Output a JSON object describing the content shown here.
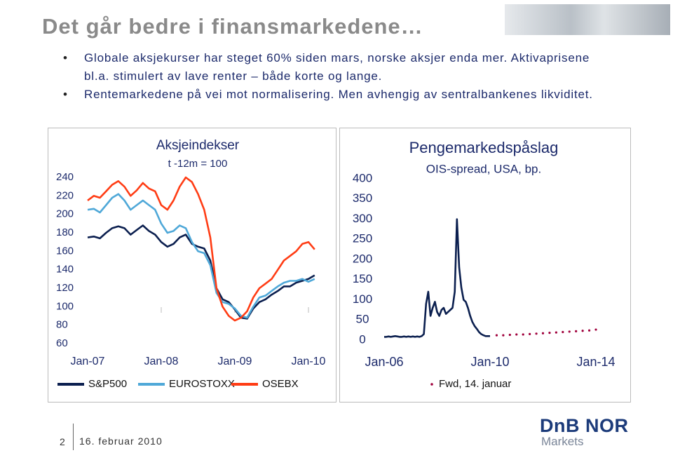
{
  "title": "Det går bedre i finansmarkedene…",
  "bullets": [
    "Globale aksjekurser har steget 60% siden mars, norske aksjer enda mer. Aktivaprisene bl.a. stimulert av lave renter – både korte og lange.",
    "Rentemarkedene på vei mot normalisering. Men avhengig av sentralbankenes likviditet."
  ],
  "footer": {
    "page": "2",
    "date": "16. februar 2010",
    "logo": "DnB NOR",
    "logo_sub": "Markets"
  },
  "chart_data": [
    {
      "type": "line",
      "title": "Aksjeindekser",
      "subtitle": "t -12m = 100",
      "categories": [
        "Jan-07",
        null,
        null,
        null,
        null,
        null,
        null,
        null,
        null,
        null,
        null,
        null,
        "Jan-08",
        null,
        null,
        null,
        null,
        null,
        null,
        null,
        null,
        null,
        null,
        null,
        "Jan-09",
        null,
        null,
        null,
        null,
        null,
        null,
        null,
        null,
        null,
        null,
        null,
        "Jan-10",
        null
      ],
      "series": [
        {
          "name": "S&P500",
          "color": "#0b1f4f",
          "values": [
            175,
            176,
            174,
            180,
            185,
            187,
            185,
            178,
            183,
            188,
            182,
            178,
            170,
            165,
            168,
            175,
            178,
            168,
            165,
            163,
            150,
            120,
            108,
            105,
            97,
            88,
            87,
            98,
            105,
            108,
            113,
            117,
            122,
            122,
            126,
            128,
            130,
            134
          ]
        },
        {
          "name": "EUROSTOXX",
          "color": "#4fa8d8",
          "values": [
            205,
            206,
            202,
            210,
            218,
            222,
            215,
            205,
            210,
            215,
            210,
            205,
            190,
            180,
            182,
            188,
            185,
            170,
            160,
            158,
            145,
            115,
            105,
            103,
            98,
            90,
            88,
            100,
            110,
            112,
            117,
            122,
            126,
            128,
            128,
            130,
            127,
            130
          ]
        },
        {
          "name": "OSEBX",
          "color": "#ff3c14",
          "values": [
            215,
            220,
            218,
            225,
            232,
            236,
            230,
            220,
            226,
            234,
            228,
            225,
            210,
            205,
            215,
            230,
            240,
            235,
            222,
            205,
            175,
            120,
            100,
            90,
            85,
            88,
            95,
            110,
            120,
            125,
            130,
            140,
            150,
            155,
            160,
            168,
            170,
            162
          ]
        }
      ],
      "ylim": [
        60,
        240
      ],
      "yticks": [
        60,
        80,
        100,
        120,
        140,
        160,
        180,
        200,
        220,
        240
      ]
    },
    {
      "type": "line",
      "title": "Pengemarkedspåslag",
      "subtitle": "OIS-spread, USA, bp.",
      "categories": [
        "Jan-06",
        null,
        null,
        null,
        null,
        null,
        null,
        null,
        null,
        null,
        null,
        null,
        null,
        null,
        null,
        null,
        null,
        null,
        null,
        null,
        null,
        null,
        null,
        null,
        null,
        null,
        null,
        null,
        null,
        null,
        null,
        null,
        null,
        null,
        null,
        null,
        null,
        null,
        null,
        null,
        null,
        null,
        null,
        null,
        null,
        null,
        null,
        null,
        "Jan-10",
        null,
        null,
        null,
        null,
        null,
        null,
        null,
        null,
        null,
        null,
        null,
        null,
        null,
        null,
        null,
        null,
        null,
        null,
        null,
        null,
        null,
        null,
        null,
        null,
        null,
        null,
        null,
        null,
        null,
        null,
        null,
        null,
        null,
        null,
        null,
        null,
        null,
        null,
        null,
        null,
        null,
        null,
        null,
        null,
        null,
        null,
        null,
        "Jan-14"
      ],
      "series": [
        {
          "color": "#0b1f4f",
          "values": [
            8,
            8,
            9,
            8,
            9,
            10,
            9,
            8,
            8,
            9,
            8,
            9,
            8,
            9,
            8,
            9,
            8,
            10,
            15,
            90,
            120,
            60,
            80,
            95,
            70,
            60,
            75,
            80,
            65,
            70,
            75,
            80,
            120,
            300,
            180,
            130,
            100,
            95,
            80,
            60,
            45,
            35,
            28,
            20,
            15,
            12,
            10,
            10,
            10,
            null,
            null,
            null,
            null,
            null,
            null,
            null,
            null,
            null,
            null,
            null,
            null,
            null,
            null,
            null,
            null,
            null,
            null,
            null,
            null,
            null,
            null,
            null,
            null,
            null,
            null,
            null,
            null,
            null,
            null,
            null,
            null,
            null,
            null,
            null,
            null,
            null,
            null,
            null,
            null,
            null,
            null,
            null,
            null,
            null,
            null,
            null,
            null
          ]
        },
        {
          "name": "Fwd, 14. januar",
          "color": "#a0003c",
          "marker": true,
          "values": [
            null,
            null,
            null,
            null,
            null,
            null,
            null,
            null,
            null,
            null,
            null,
            null,
            null,
            null,
            null,
            null,
            null,
            null,
            null,
            null,
            null,
            null,
            null,
            null,
            null,
            null,
            null,
            null,
            null,
            null,
            null,
            null,
            null,
            null,
            null,
            null,
            null,
            null,
            null,
            null,
            null,
            null,
            null,
            null,
            null,
            null,
            null,
            null,
            null,
            null,
            null,
            12,
            null,
            null,
            12,
            null,
            null,
            13,
            null,
            null,
            14,
            null,
            null,
            14,
            null,
            null,
            15,
            null,
            null,
            16,
            null,
            null,
            17,
            null,
            null,
            18,
            null,
            null,
            19,
            null,
            null,
            20,
            null,
            null,
            21,
            null,
            null,
            22,
            null,
            null,
            23,
            null,
            null,
            24,
            null,
            null,
            26
          ]
        }
      ],
      "ylim": [
        0,
        400
      ],
      "yticks": [
        0,
        50,
        100,
        150,
        200,
        250,
        300,
        350,
        400
      ]
    }
  ]
}
